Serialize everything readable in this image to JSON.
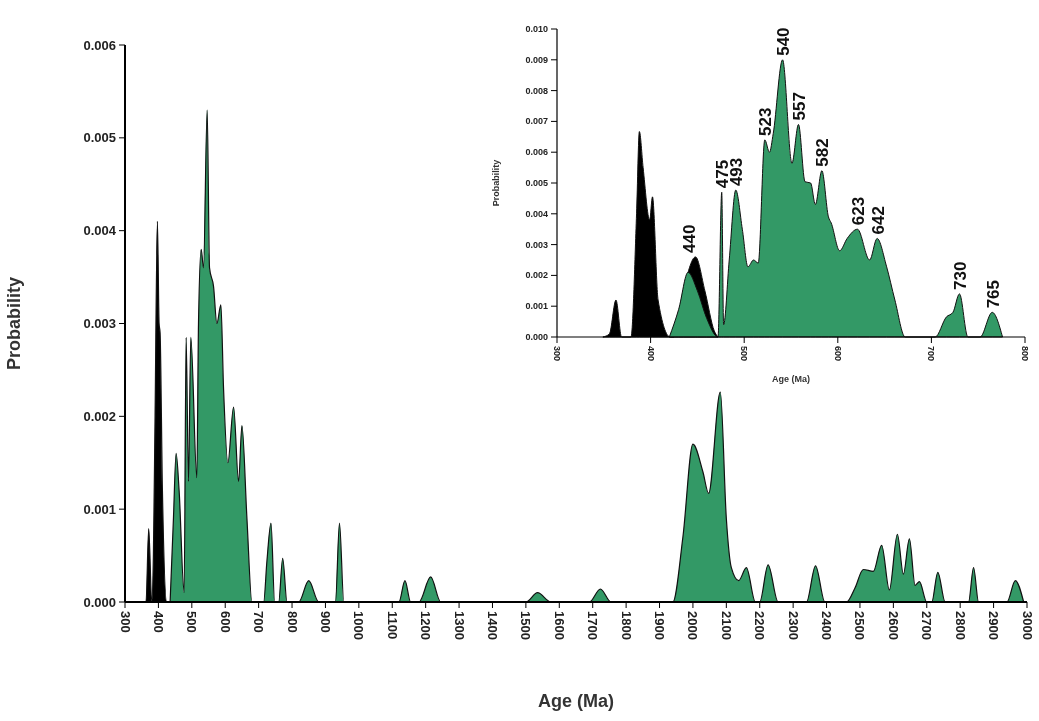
{
  "chart_data": [
    {
      "type": "area",
      "xlabel": "Age (Ma)",
      "ylabel": "Probability",
      "xlim": [
        300,
        3000
      ],
      "ylim": [
        0,
        0.006
      ],
      "xticks": [
        300,
        400,
        500,
        600,
        700,
        800,
        900,
        1000,
        1100,
        1200,
        1300,
        1400,
        1500,
        1600,
        1700,
        1800,
        1900,
        2000,
        2100,
        2200,
        2300,
        2400,
        2500,
        2600,
        2700,
        2800,
        2900,
        3000
      ],
      "yticks": [
        {
          "value": 0,
          "label": "0.000"
        },
        {
          "value": 0.001,
          "label": "0.001"
        },
        {
          "value": 0.002,
          "label": "0.002"
        },
        {
          "value": 0.003,
          "label": "0.003"
        },
        {
          "value": 0.004,
          "label": "0.004"
        },
        {
          "value": 0.005,
          "label": "0.005"
        },
        {
          "value": 0.006,
          "label": "0.006"
        }
      ],
      "grid": false,
      "series": [
        {
          "color": "#000000",
          "x": [
            355,
            363,
            371,
            380,
            385,
            390,
            397,
            402,
            405,
            412,
            425,
            435
          ],
          "values": [
            0,
            0,
            0.00079,
            0,
            0.0005,
            0.002,
            0.0041,
            0.003,
            0.0029,
            0.0012,
            0,
            0
          ]
        },
        {
          "color": "#339966",
          "x": [
            435,
            445,
            453,
            462,
            477,
            483,
            490,
            497,
            515,
            520,
            528,
            535,
            546,
            553,
            565,
            575,
            587,
            595,
            608,
            625,
            640,
            650,
            665,
            680,
            715,
            725,
            737,
            748,
            760,
            772,
            785,
            820,
            850,
            880,
            930,
            942,
            955,
            1120,
            1138,
            1155,
            1180,
            1215,
            1245,
            1500,
            1535,
            1575,
            1690,
            1723,
            1755,
            1940,
            1970,
            2000,
            2030,
            2047,
            2082,
            2100,
            2115,
            2137,
            2160,
            2187,
            2200,
            2225,
            2255,
            2340,
            2367,
            2395,
            2460,
            2485,
            2510,
            2540,
            2565,
            2588,
            2612,
            2630,
            2648,
            2665,
            2678,
            2700,
            2715,
            2733,
            2755,
            2825,
            2840,
            2855,
            2940,
            2965,
            2990
          ],
          "values": [
            0,
            0.0009,
            0.0016,
            0.0012,
            0.0001,
            0.00285,
            0.0013,
            0.00285,
            0.00134,
            0.003,
            0.0038,
            0.0036,
            0.0053,
            0.0036,
            0.0034,
            0.003,
            0.0032,
            0.0023,
            0.0015,
            0.0021,
            0.0013,
            0.0019,
            0.0009,
            0,
            0,
            0.00045,
            0.00085,
            0,
            0,
            0.00047,
            0,
            0,
            0.00023,
            0,
            0,
            0.00085,
            0,
            0,
            0.00023,
            0,
            0,
            0.00027,
            0,
            0,
            0.0001,
            0,
            0,
            0.00014,
            0,
            0,
            0.0007,
            0.0017,
            0.0014,
            0.00117,
            0.00226,
            0.0009,
            0.00037,
            0.00023,
            0.00037,
            0,
            0,
            0.0004,
            0,
            0,
            0.00039,
            0,
            0,
            0.00015,
            0.00035,
            0.00033,
            0.00061,
            0.00013,
            0.00073,
            0.0003,
            0.00068,
            0.00018,
            0.00022,
            0,
            0,
            0.00032,
            0,
            0,
            0.00037,
            0,
            0,
            0.00023,
            0
          ]
        }
      ]
    },
    {
      "type": "area",
      "xlabel": "Age (Ma)",
      "ylabel": "Probability",
      "xlim": [
        300,
        800
      ],
      "ylim": [
        0,
        0.01
      ],
      "xticks": [
        300,
        400,
        500,
        600,
        700,
        800
      ],
      "yticks": [
        {
          "value": 0,
          "label": "0.000"
        },
        {
          "value": 0.001,
          "label": "0.001"
        },
        {
          "value": 0.002,
          "label": "0.002"
        },
        {
          "value": 0.003,
          "label": "0.003"
        },
        {
          "value": 0.004,
          "label": "0.004"
        },
        {
          "value": 0.005,
          "label": "0.005"
        },
        {
          "value": 0.006,
          "label": "0.006"
        },
        {
          "value": 0.007,
          "label": "0.007"
        },
        {
          "value": 0.008,
          "label": "0.008"
        },
        {
          "value": 0.009,
          "label": "0.009"
        },
        {
          "value": 0.01,
          "label": "0.010"
        }
      ],
      "grid": false,
      "annotations": [
        {
          "text": "440",
          "x": 440,
          "y": 0.0026
        },
        {
          "text": "475",
          "x": 476,
          "y": 0.0047
        },
        {
          "text": "493",
          "x": 491,
          "y": 0.00477
        },
        {
          "text": "523",
          "x": 522,
          "y": 0.0064
        },
        {
          "text": "540",
          "x": 541,
          "y": 0.009
        },
        {
          "text": "557",
          "x": 558,
          "y": 0.0069
        },
        {
          "text": "582",
          "x": 583,
          "y": 0.0054
        },
        {
          "text": "623",
          "x": 621,
          "y": 0.0035
        },
        {
          "text": "642",
          "x": 642,
          "y": 0.0032
        },
        {
          "text": "730",
          "x": 730,
          "y": 0.0014
        },
        {
          "text": "765",
          "x": 765,
          "y": 0.0008
        }
      ],
      "series": [
        {
          "color": "#000000",
          "x": [
            349,
            356,
            363,
            369,
            379,
            385,
            388,
            392,
            399,
            402,
            408,
            421,
            425,
            435,
            448,
            458,
            468,
            472
          ],
          "values": [
            0,
            0.0001,
            0.0012,
            0,
            0,
            0.004,
            0.00667,
            0.0055,
            0.0038,
            0.00455,
            0.0012,
            0,
            0,
            0.0015,
            0.0026,
            0.0015,
            0.0002,
            0
          ]
        },
        {
          "color": "#339966",
          "x": [
            420,
            430,
            440,
            450,
            460,
            472,
            476,
            478,
            484,
            491,
            498,
            504,
            510,
            515,
            522,
            527,
            531,
            541,
            551,
            558,
            565,
            571,
            576,
            583,
            590,
            593,
            602,
            610,
            621,
            634,
            642,
            652,
            661,
            672,
            704,
            716,
            723,
            730,
            739,
            752,
            765,
            776
          ],
          "values": [
            0,
            0.0009,
            0.0021,
            0.0015,
            0.0006,
            0,
            0.0047,
            0.0004,
            0.0025,
            0.00477,
            0.0035,
            0.00228,
            0.0025,
            0.0024,
            0.0064,
            0.006,
            0.0066,
            0.009,
            0.00564,
            0.0069,
            0.00504,
            0.005,
            0.0043,
            0.0054,
            0.0039,
            0.0037,
            0.0028,
            0.0032,
            0.0035,
            0.0025,
            0.0032,
            0.0023,
            0.0012,
            0,
            0,
            0.00065,
            0.0008,
            0.0014,
            0,
            0,
            0.0008,
            0
          ]
        }
      ]
    }
  ]
}
